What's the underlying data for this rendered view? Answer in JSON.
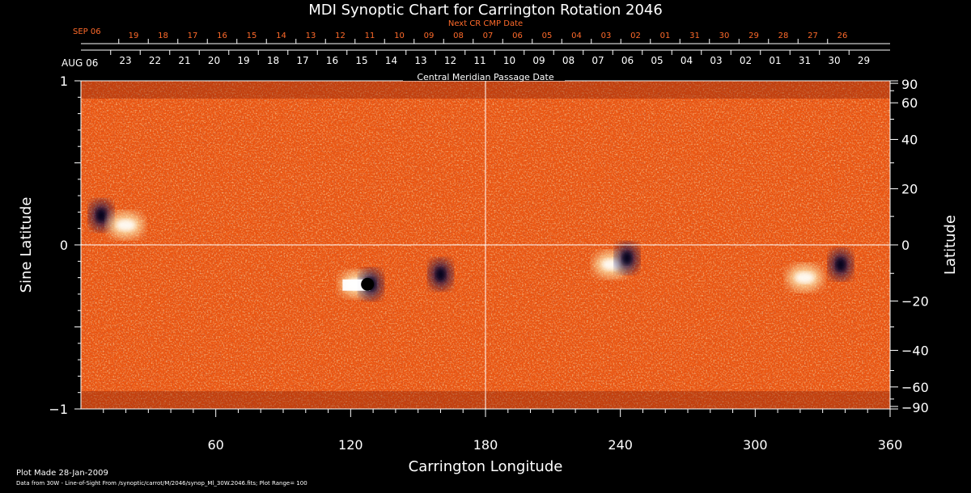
{
  "chart_data": {
    "type": "heatmap",
    "title": "MDI Synoptic Chart for Carrington Rotation 2046",
    "xlabel": "Carrington Longitude",
    "ylabel_left": "Sine Latitude",
    "ylabel_right": "Latitude",
    "xlim": [
      0,
      360
    ],
    "ylim": [
      -1,
      1
    ],
    "x_ticks": [
      "60",
      "120",
      "180",
      "240",
      "300",
      "360"
    ],
    "y_left_ticks": [
      "1",
      "0",
      "−1"
    ],
    "y_right_ticks": [
      "90",
      "60",
      "40",
      "20",
      "0",
      "−20",
      "−40",
      "−60",
      "−90"
    ],
    "cmp_axis_title": "Central Meridian Passage Date",
    "cmp_month_label": "AUG 06",
    "cmp_dates": [
      "23",
      "22",
      "21",
      "20",
      "19",
      "18",
      "17",
      "16",
      "15",
      "14",
      "13",
      "12",
      "11",
      "10",
      "09",
      "08",
      "07",
      "06",
      "05",
      "04",
      "03",
      "02",
      "01",
      "31",
      "30",
      "29"
    ],
    "next_cr_title": "Next CR CMP Date",
    "next_cr_month_label": "SEP 06",
    "next_cr_dates": [
      "19",
      "18",
      "17",
      "16",
      "15",
      "14",
      "13",
      "12",
      "11",
      "10",
      "09",
      "08",
      "07",
      "06",
      "05",
      "04",
      "03",
      "02",
      "01",
      "31",
      "30",
      "29",
      "28",
      "27",
      "26"
    ],
    "plot_range": 100,
    "grid": "crosshair at 180 longitude and equator",
    "colors": {
      "field_base": "#e8480c",
      "positive": "#ffe8a0",
      "negative": "#0a0a50",
      "text": "#ffffff",
      "next_cr": "#ff6a2a"
    },
    "features": [
      {
        "name": "positive region",
        "lon": 123,
        "sinlat": -0.24,
        "polarity": "positive"
      },
      {
        "name": "negative spot",
        "lon": 129,
        "sinlat": -0.24,
        "polarity": "negative"
      },
      {
        "name": "negative region",
        "lon": 338,
        "sinlat": -0.12,
        "polarity": "negative"
      },
      {
        "name": "positive plage",
        "lon": 322,
        "sinlat": -0.2,
        "polarity": "positive"
      },
      {
        "name": "negative plage",
        "lon": 9,
        "sinlat": 0.18,
        "polarity": "negative"
      },
      {
        "name": "positive plage",
        "lon": 20,
        "sinlat": 0.12,
        "polarity": "positive"
      },
      {
        "name": "negative plage",
        "lon": 160,
        "sinlat": -0.18,
        "polarity": "negative"
      },
      {
        "name": "positive plage",
        "lon": 236,
        "sinlat": -0.12,
        "polarity": "positive"
      },
      {
        "name": "negative plage",
        "lon": 243,
        "sinlat": -0.08,
        "polarity": "negative"
      }
    ]
  },
  "footer": {
    "plot_made": "Plot Made 28-Jan-2009",
    "data_from": "Data from 30W - Line-of-Sight From /synoptic/carrot/M/2046/synop_Ml_30W.2046.fits; Plot Range=  100"
  }
}
